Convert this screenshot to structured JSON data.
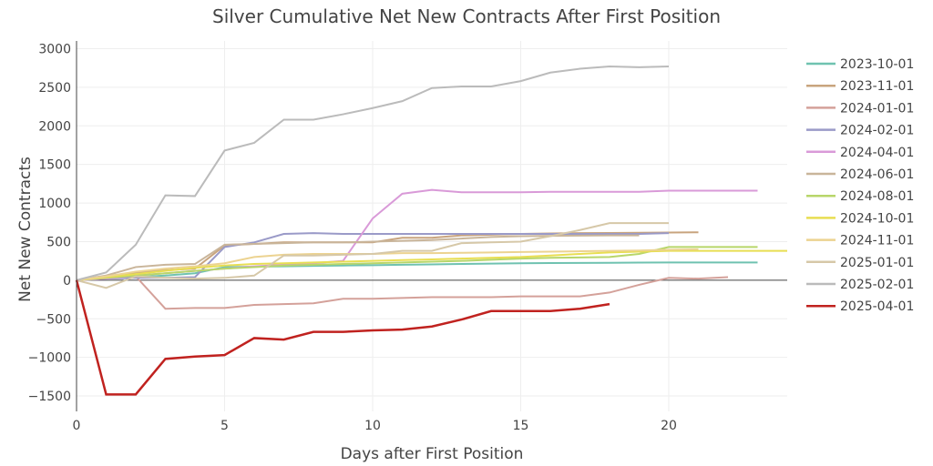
{
  "chart_data": {
    "type": "line",
    "title": "Silver Cumulative Net New Contracts After First Position",
    "xlabel": "Days after First Position",
    "ylabel": "Net New Contracts",
    "xlim": [
      0,
      24
    ],
    "ylim": [
      -1700,
      3100
    ],
    "xticks": [
      0,
      5,
      10,
      15,
      20
    ],
    "yticks": [
      -1500,
      -1000,
      -500,
      0,
      500,
      1000,
      1500,
      2000,
      2500,
      3000
    ],
    "grid": true,
    "legend": "right",
    "series": [
      {
        "name": "2023-10-01",
        "color": "#6fc2b0",
        "values": [
          0,
          20,
          40,
          60,
          90,
          170,
          175,
          180,
          185,
          190,
          195,
          200,
          205,
          210,
          215,
          220,
          222,
          224,
          226,
          228,
          230,
          230,
          230,
          230
        ]
      },
      {
        "name": "2023-11-01",
        "color": "#c8a47e",
        "values": [
          0,
          50,
          100,
          130,
          150,
          450,
          470,
          490,
          490,
          490,
          490,
          550,
          550,
          580,
          590,
          600,
          605,
          610,
          612,
          615,
          618,
          620
        ]
      },
      {
        "name": "2024-01-01",
        "color": "#d4a19a",
        "values": [
          0,
          30,
          50,
          -370,
          -360,
          -360,
          -320,
          -310,
          -300,
          -240,
          -240,
          -230,
          -220,
          -220,
          -220,
          -210,
          -210,
          -210,
          -160,
          -60,
          30,
          20,
          40
        ]
      },
      {
        "name": "2024-02-01",
        "color": "#9a9ac8",
        "values": [
          0,
          20,
          30,
          30,
          40,
          430,
          490,
          600,
          610,
          600,
          600,
          600,
          600,
          600,
          600,
          600,
          600,
          600,
          600,
          600,
          610
        ]
      },
      {
        "name": "2024-04-01",
        "color": "#d99ad8",
        "values": [
          0,
          20,
          60,
          90,
          120,
          150,
          180,
          200,
          220,
          250,
          800,
          1120,
          1170,
          1140,
          1140,
          1140,
          1145,
          1145,
          1145,
          1145,
          1160,
          1160,
          1160,
          1160
        ]
      },
      {
        "name": "2024-06-01",
        "color": "#c9b59a",
        "values": [
          0,
          60,
          170,
          200,
          210,
          460,
          470,
          480,
          490,
          490,
          500,
          510,
          520,
          540,
          560,
          570,
          575,
          578,
          580,
          580
        ]
      },
      {
        "name": "2024-08-01",
        "color": "#b8d66a",
        "values": [
          0,
          30,
          60,
          90,
          120,
          150,
          170,
          190,
          200,
          210,
          220,
          230,
          240,
          250,
          265,
          280,
          290,
          295,
          300,
          340,
          430,
          430,
          430,
          430
        ]
      },
      {
        "name": "2024-10-01",
        "color": "#e8de52",
        "values": [
          0,
          40,
          80,
          120,
          160,
          190,
          210,
          220,
          230,
          240,
          250,
          260,
          270,
          280,
          290,
          300,
          320,
          340,
          360,
          370,
          380,
          380,
          380,
          380,
          380
        ]
      },
      {
        "name": "2024-11-01",
        "color": "#ecd391",
        "values": [
          0,
          50,
          110,
          150,
          180,
          220,
          300,
          330,
          340,
          340,
          340,
          350,
          350,
          355,
          360,
          365,
          370,
          375,
          380,
          385,
          395,
          400
        ]
      },
      {
        "name": "2025-01-01",
        "color": "#d6c8a8",
        "values": [
          0,
          -100,
          50,
          30,
          20,
          30,
          60,
          320,
          320,
          330,
          340,
          380,
          380,
          480,
          490,
          500,
          570,
          650,
          740,
          740,
          740
        ]
      },
      {
        "name": "2025-02-01",
        "color": "#bbbbbb",
        "values": [
          0,
          100,
          460,
          1100,
          1090,
          1680,
          1780,
          2080,
          2080,
          2150,
          2230,
          2320,
          2490,
          2510,
          2510,
          2580,
          2690,
          2740,
          2770,
          2760,
          2770
        ]
      },
      {
        "name": "2025-04-01",
        "color": "#c0221f",
        "values": [
          0,
          -1480,
          -1480,
          -1020,
          -990,
          -970,
          -750,
          -770,
          -670,
          -670,
          -650,
          -640,
          -600,
          -510,
          -400,
          -400,
          -400,
          -370,
          -310
        ]
      }
    ]
  }
}
